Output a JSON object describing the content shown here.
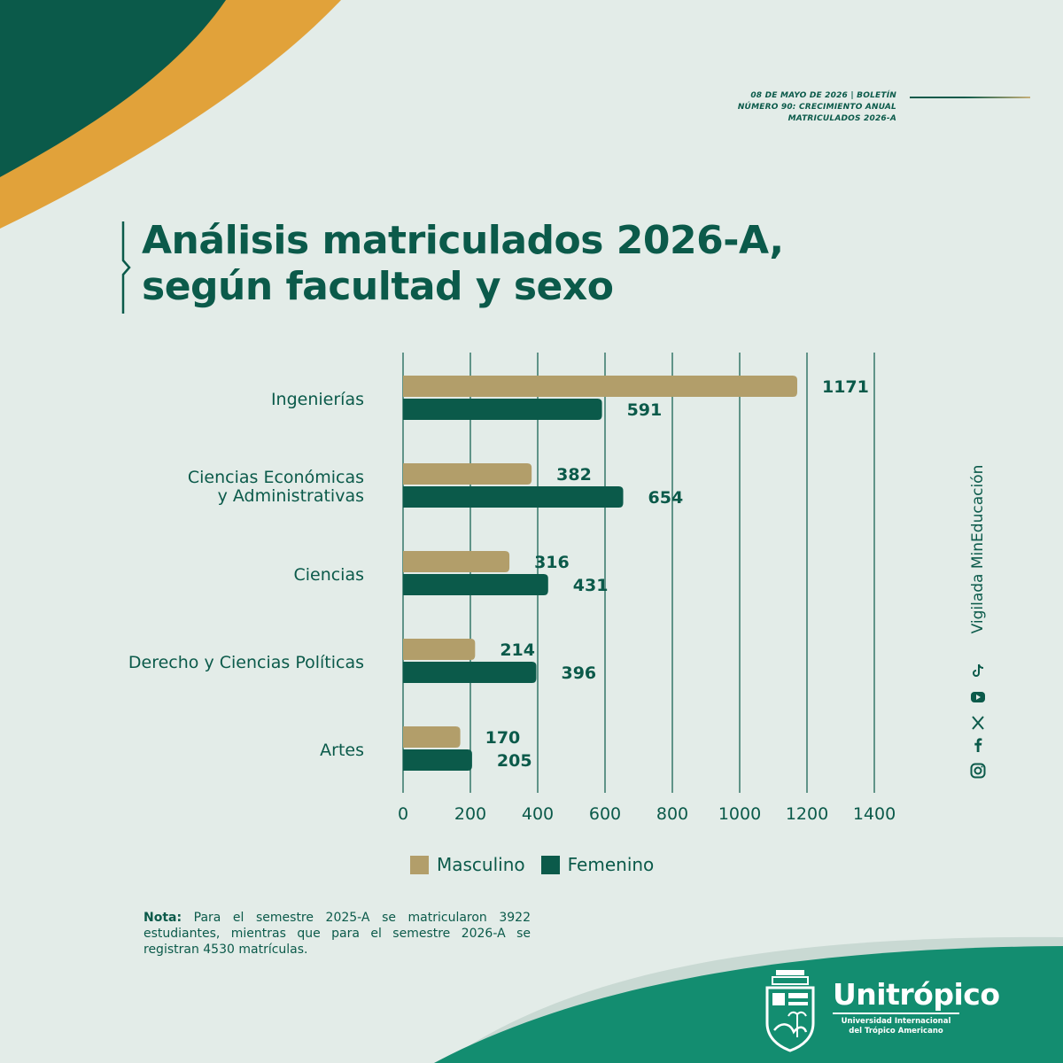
{
  "header": {
    "meta_line1": "08 DE MAYO DE 2026 | BOLETÍN",
    "meta_line2": "NÚMERO 90: CRECIMIENTO ANUAL",
    "meta_line3": "MATRICULADOS 2026-A"
  },
  "title": {
    "line1": "Análisis matriculados 2026-A,",
    "line2": "según facultad y sexo"
  },
  "colors": {
    "masculino": "#b29e6a",
    "femenino": "#0b5a4a",
    "text": "#0b5a4a",
    "background": "#e3ece8",
    "accent_gold": "#e1a23a",
    "brand_green": "#138d70"
  },
  "chart_data": {
    "type": "bar",
    "orientation": "horizontal",
    "categories": [
      "Ingenierías",
      "Ciencias Económicas y Administrativas",
      "Ciencias",
      "Derecho y Ciencias Políticas",
      "Artes"
    ],
    "category_lines": [
      [
        "Ingenierías"
      ],
      [
        "Ciencias Económicas",
        "y Administrativas"
      ],
      [
        "Ciencias"
      ],
      [
        "Derecho y Ciencias Políticas"
      ],
      [
        "Artes"
      ]
    ],
    "series": [
      {
        "name": "Masculino",
        "values": [
          1171,
          382,
          316,
          214,
          170
        ]
      },
      {
        "name": "Femenino",
        "values": [
          591,
          654,
          431,
          396,
          205
        ]
      }
    ],
    "xlim": [
      0,
      1400
    ],
    "xticks": [
      0,
      200,
      400,
      600,
      800,
      1000,
      1200,
      1400
    ],
    "grid": "vertical",
    "legend_position": "bottom"
  },
  "legend": {
    "masculino": "Masculino",
    "femenino": "Femenino"
  },
  "note": {
    "label": "Nota:",
    "text": "Para el semestre 2025-A se matricularon 3922 estudiantes, mientras que para el semestre 2026-A se registran 4530 matrículas."
  },
  "side": {
    "vigilada": "Vigilada MinEducación",
    "social_icons": [
      "instagram-icon",
      "facebook-icon",
      "x-icon",
      "youtube-icon",
      "tiktok-icon"
    ]
  },
  "brand": {
    "name": "Unitrópico",
    "sub_line1": "Universidad Internacional",
    "sub_line2": "del Trópico Americano"
  }
}
